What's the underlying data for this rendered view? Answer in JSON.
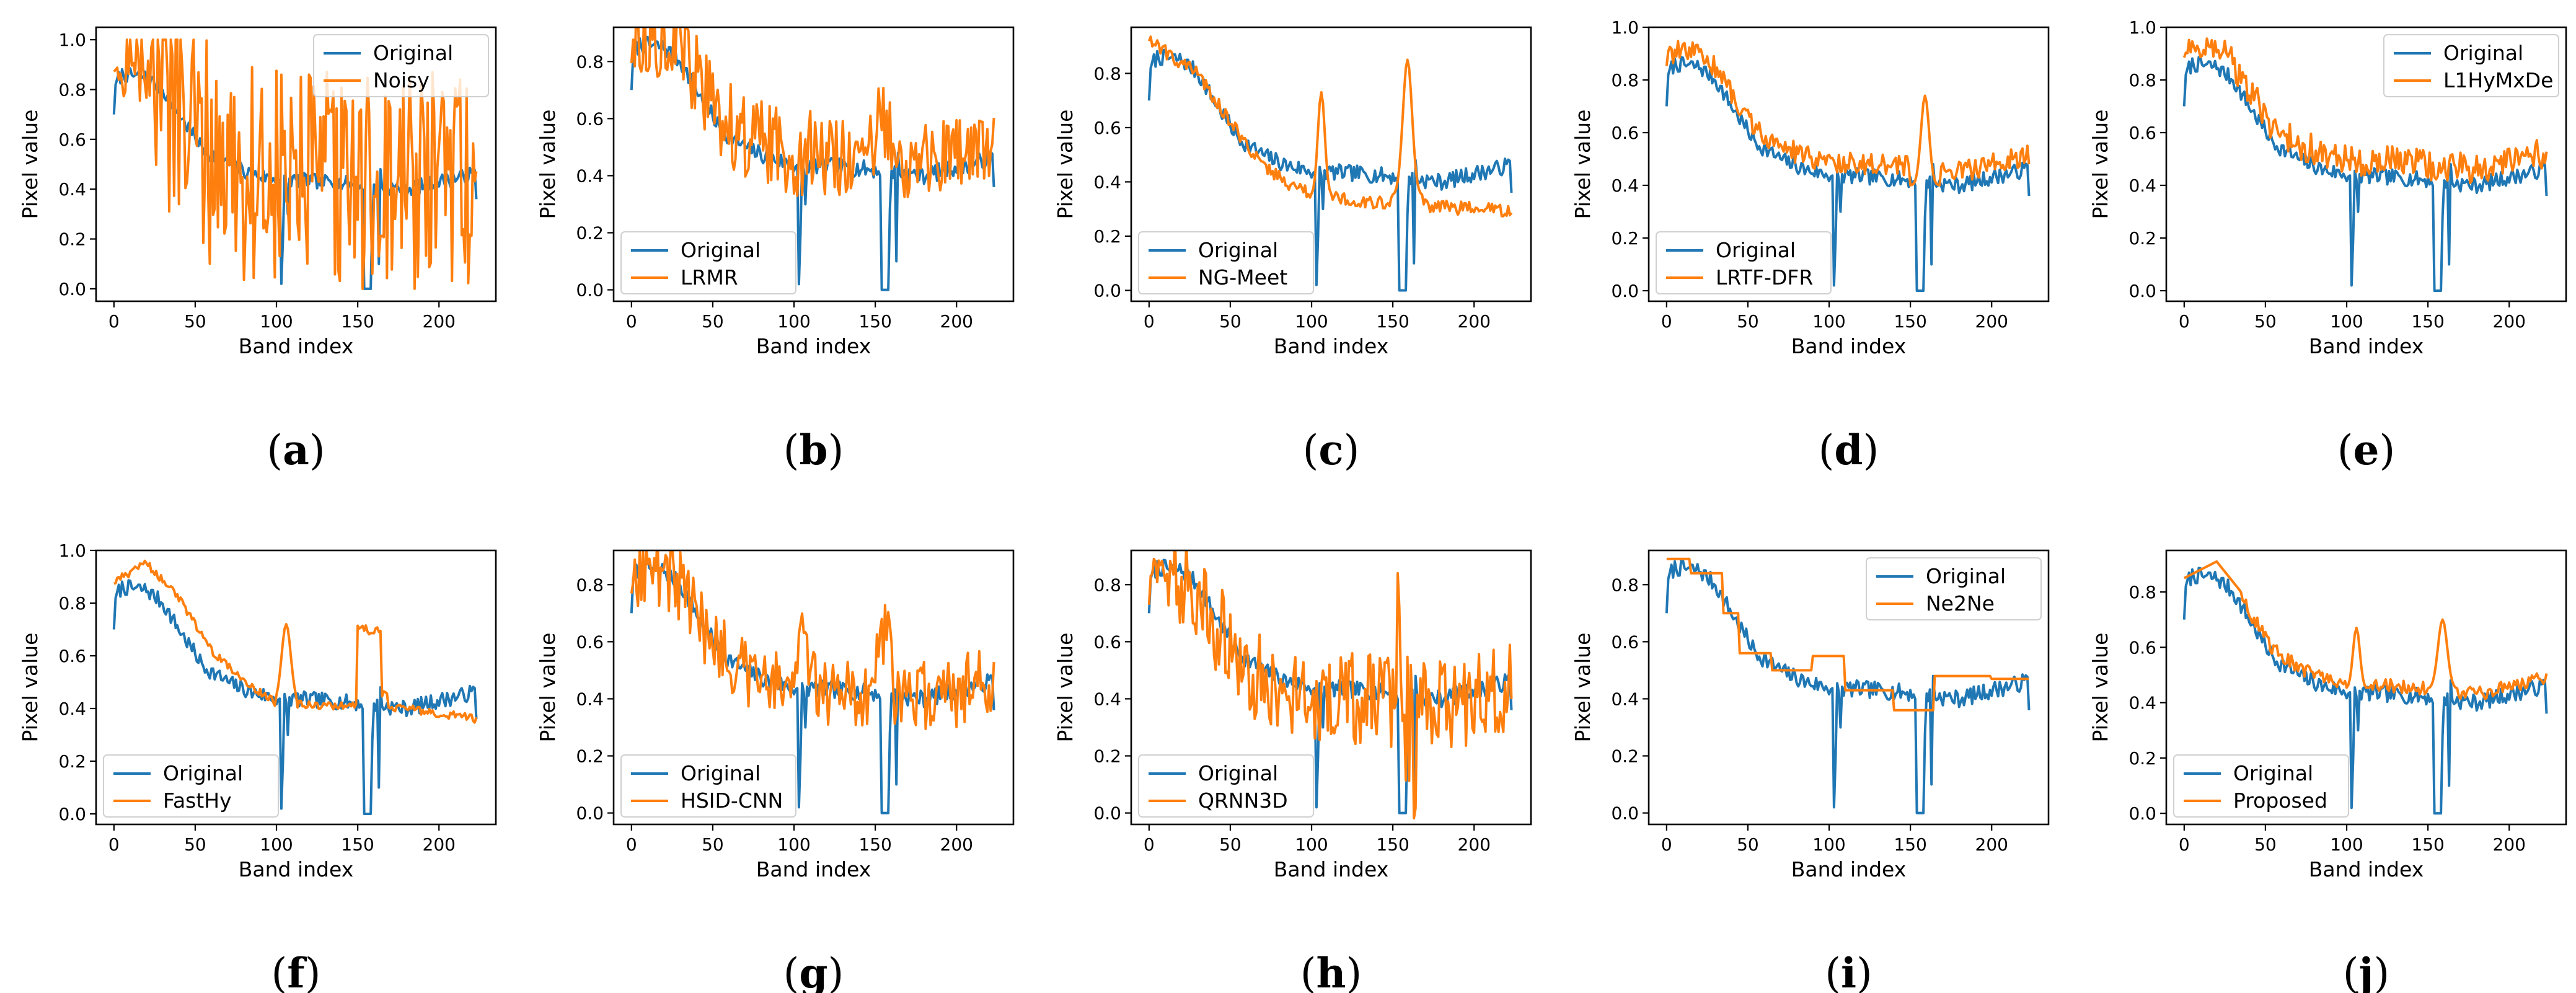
{
  "colors": {
    "original": "#1f77b4",
    "method": "#ff7f0e",
    "axes": "#000000",
    "legend_border": "#d0d0d0"
  },
  "shared": {
    "xlabel": "Band index",
    "ylabel": "Pixel value",
    "original_label": "Original",
    "x_ticks": [
      0,
      50,
      100,
      150,
      200
    ],
    "xlim": [
      -11,
      235
    ]
  },
  "chart_data": [
    {
      "id": "a",
      "caption": "a",
      "type": "line",
      "method": "Noisy",
      "method_kind": "noisy",
      "ylim": [
        -0.05,
        1.05
      ],
      "y_ticks": [
        0.0,
        0.2,
        0.4,
        0.6,
        0.8,
        1.0
      ],
      "legend": "top-right"
    },
    {
      "id": "b",
      "caption": "b",
      "type": "line",
      "method": "LRMR",
      "method_kind": "noisy-med",
      "ylim": [
        -0.04,
        0.92
      ],
      "y_ticks": [
        0.0,
        0.2,
        0.4,
        0.6,
        0.8
      ],
      "legend": "bottom-left"
    },
    {
      "id": "c",
      "caption": "c",
      "type": "line",
      "method": "NG-Meet",
      "method_kind": "smooth-peaks-low",
      "ylim": [
        -0.04,
        0.97
      ],
      "y_ticks": [
        0.0,
        0.2,
        0.4,
        0.6,
        0.8
      ],
      "legend": "bottom-left"
    },
    {
      "id": "d",
      "caption": "d",
      "type": "line",
      "method": "LRTF-DFR",
      "method_kind": "smooth-peak",
      "ylim": [
        -0.04,
        1.0
      ],
      "y_ticks": [
        0.0,
        0.2,
        0.4,
        0.6,
        0.8,
        1.0
      ],
      "legend": "bottom-left"
    },
    {
      "id": "e",
      "caption": "e",
      "type": "line",
      "method": "L1HyMxDe",
      "method_kind": "mild-noise",
      "ylim": [
        -0.04,
        1.0
      ],
      "y_ticks": [
        0.0,
        0.2,
        0.4,
        0.6,
        0.8,
        1.0
      ],
      "legend": "top-right"
    },
    {
      "id": "f",
      "caption": "f",
      "type": "line",
      "method": "FastHy",
      "method_kind": "smooth-high",
      "ylim": [
        -0.04,
        1.0
      ],
      "y_ticks": [
        0.0,
        0.2,
        0.4,
        0.6,
        0.8,
        1.0
      ],
      "legend": "bottom-left"
    },
    {
      "id": "g",
      "caption": "g",
      "type": "line",
      "method": "HSID-CNN",
      "method_kind": "noisy-spikes",
      "ylim": [
        -0.04,
        0.92
      ],
      "y_ticks": [
        0.0,
        0.2,
        0.4,
        0.6,
        0.8
      ],
      "legend": "bottom-left"
    },
    {
      "id": "h",
      "caption": "h",
      "type": "line",
      "method": "QRNN3D",
      "method_kind": "noisy-med2",
      "ylim": [
        -0.04,
        0.92
      ],
      "y_ticks": [
        0.0,
        0.2,
        0.4,
        0.6,
        0.8
      ],
      "legend": "bottom-left"
    },
    {
      "id": "i",
      "caption": "i",
      "type": "line",
      "method": "Ne2Ne",
      "method_kind": "step",
      "ylim": [
        -0.04,
        0.92
      ],
      "y_ticks": [
        0.0,
        0.2,
        0.4,
        0.6,
        0.8
      ],
      "legend": "top-right"
    },
    {
      "id": "j",
      "caption": "j",
      "type": "line",
      "method": "Proposed",
      "method_kind": "proposed",
      "ylim": [
        -0.04,
        0.95
      ],
      "y_ticks": [
        0.0,
        0.2,
        0.4,
        0.6,
        0.8
      ],
      "legend": "bottom-left"
    }
  ]
}
